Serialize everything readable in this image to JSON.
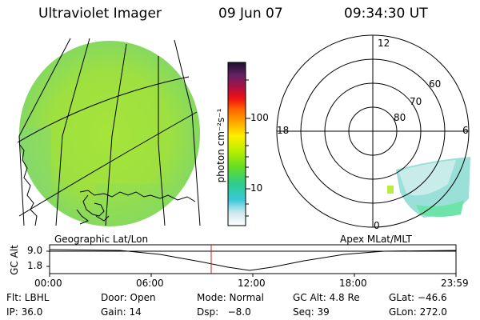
{
  "header": {
    "instrument": "Ultraviolet Imager",
    "date": "09 Jun 07",
    "time": "09:34:30 UT"
  },
  "colorbar": {
    "unit_label": "photon cm⁻²s⁻¹",
    "ticks": [
      "100",
      "10"
    ]
  },
  "polar": {
    "mlt_labels": [
      "12",
      "18",
      "6",
      "0"
    ],
    "mlat_labels": [
      "60",
      "70",
      "80"
    ]
  },
  "altitude_panel": {
    "left_caption": "Geographic Lat/Lon",
    "right_caption": "Apex MLat/MLT",
    "yaxis_label": "GC Alt",
    "yticks": [
      "9.0",
      "1.8"
    ],
    "xticks": [
      "00:00",
      "06:00",
      "12:00",
      "18:00",
      "23:59"
    ],
    "marker_color": "#cc2222"
  },
  "status": {
    "filter": "Flt: LBHL",
    "door": "Door: Open",
    "mode": "Mode: Normal",
    "gc_alt": "GC Alt: 4.8 Re",
    "glat": "GLat: −46.6",
    "ip": "IP: 36.0",
    "gain": "Gain: 14",
    "dsp": "Dsp:   −8.0",
    "seq": "Seq: 39",
    "glon": "GLon: 272.0"
  }
}
